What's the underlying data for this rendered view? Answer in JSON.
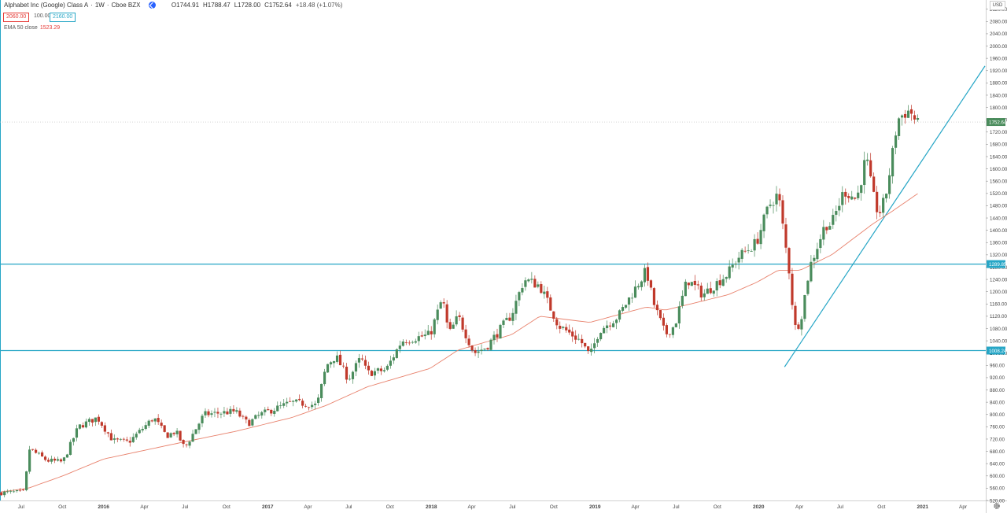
{
  "header": {
    "symbol": "Alphabet Inc (Google) Class A",
    "interval": "1W",
    "exchange": "Cboe BZX",
    "open": "O1744.91",
    "high": "H1788.47",
    "low": "L1728.00",
    "close": "C1752.64",
    "change": "+18.48 (+1.07%)"
  },
  "scale_boxes": {
    "low": "2060.00",
    "mid": "100.00",
    "high": "2160.00"
  },
  "indicator": {
    "label": "EMA 50 close",
    "value": "1523.29"
  },
  "currency": "USD",
  "price_badges": {
    "last": "1752.64",
    "upper_level": "1289.85",
    "lower_level": "1008.24"
  },
  "colors": {
    "up": "#4a8c5c",
    "down": "#c0392b",
    "ema": "#e8826d",
    "level": "#26a6c6",
    "axis_text": "#444444"
  },
  "chart_data": {
    "type": "candlestick",
    "title": "Alphabet Inc (Google) Class A · 1W · Cboe BZX",
    "ylim": [
      520,
      2150
    ],
    "y_ticks": [
      "520.00",
      "560.00",
      "600.00",
      "640.00",
      "680.00",
      "720.00",
      "760.00",
      "800.00",
      "840.00",
      "880.00",
      "920.00",
      "960.00",
      "1000.00",
      "1040.00",
      "1080.00",
      "1120.00",
      "1160.00",
      "1200.00",
      "1240.00",
      "1280.00",
      "1320.00",
      "1360.00",
      "1400.00",
      "1440.00",
      "1480.00",
      "1520.00",
      "1560.00",
      "1600.00",
      "1640.00",
      "1680.00",
      "1720.00",
      "1760.00",
      "1800.00",
      "1840.00",
      "1880.00",
      "1920.00",
      "1960.00",
      "2000.00",
      "2040.00",
      "2080.00",
      "2120.00"
    ],
    "x_ticks": [
      {
        "label": "Jul",
        "date": "2015-07-01"
      },
      {
        "label": "Oct",
        "date": "2015-10-01"
      },
      {
        "label": "2016",
        "date": "2016-01-01"
      },
      {
        "label": "Apr",
        "date": "2016-04-01"
      },
      {
        "label": "Jul",
        "date": "2016-07-01"
      },
      {
        "label": "Oct",
        "date": "2016-10-01"
      },
      {
        "label": "2017",
        "date": "2017-01-01"
      },
      {
        "label": "Apr",
        "date": "2017-04-01"
      },
      {
        "label": "Jul",
        "date": "2017-07-01"
      },
      {
        "label": "Oct",
        "date": "2017-10-01"
      },
      {
        "label": "2018",
        "date": "2018-01-01"
      },
      {
        "label": "Apr",
        "date": "2018-04-01"
      },
      {
        "label": "Jul",
        "date": "2018-07-01"
      },
      {
        "label": "Oct",
        "date": "2018-10-01"
      },
      {
        "label": "2019",
        "date": "2019-01-01"
      },
      {
        "label": "Apr",
        "date": "2019-04-01"
      },
      {
        "label": "Jul",
        "date": "2019-07-01"
      },
      {
        "label": "Oct",
        "date": "2019-10-01"
      },
      {
        "label": "2020",
        "date": "2020-01-01"
      },
      {
        "label": "Apr",
        "date": "2020-04-01"
      },
      {
        "label": "Jul",
        "date": "2020-07-01"
      },
      {
        "label": "Oct",
        "date": "2020-10-01"
      },
      {
        "label": "2021",
        "date": "2021-01-01"
      },
      {
        "label": "Apr",
        "date": "2021-04-01"
      }
    ],
    "x_range": [
      "2015-05-15",
      "2021-05-20"
    ],
    "candle_start": "2015-05-18",
    "anchors": [
      [
        "2015-05-18",
        545
      ],
      [
        "2015-07-10",
        548
      ],
      [
        "2015-07-17",
        690
      ],
      [
        "2015-08-28",
        650
      ],
      [
        "2015-10-02",
        645
      ],
      [
        "2015-11-06",
        760
      ],
      [
        "2015-12-18",
        790
      ],
      [
        "2016-01-22",
        715
      ],
      [
        "2016-02-26",
        710
      ],
      [
        "2016-04-22",
        790
      ],
      [
        "2016-05-20",
        730
      ],
      [
        "2016-06-10",
        745
      ],
      [
        "2016-06-30",
        690
      ],
      [
        "2016-08-12",
        800
      ],
      [
        "2016-10-21",
        810
      ],
      [
        "2016-11-18",
        770
      ],
      [
        "2016-12-16",
        800
      ],
      [
        "2017-02-24",
        840
      ],
      [
        "2017-04-21",
        830
      ],
      [
        "2017-05-12",
        960
      ],
      [
        "2017-06-02",
        990
      ],
      [
        "2017-06-30",
        915
      ],
      [
        "2017-07-28",
        985
      ],
      [
        "2017-08-11",
        935
      ],
      [
        "2017-09-22",
        945
      ],
      [
        "2017-10-27",
        1040
      ],
      [
        "2017-12-29",
        1060
      ],
      [
        "2018-01-26",
        1180
      ],
      [
        "2018-02-09",
        1060
      ],
      [
        "2018-03-02",
        1120
      ],
      [
        "2018-04-06",
        1000
      ],
      [
        "2018-05-04",
        1020
      ],
      [
        "2018-06-29",
        1125
      ],
      [
        "2018-07-27",
        1240
      ],
      [
        "2018-08-31",
        1220
      ],
      [
        "2018-10-12",
        1090
      ],
      [
        "2018-11-30",
        1040
      ],
      [
        "2018-12-21",
        990
      ],
      [
        "2019-01-11",
        1075
      ],
      [
        "2019-02-22",
        1120
      ],
      [
        "2019-04-26",
        1270
      ],
      [
        "2019-05-10",
        1170
      ],
      [
        "2019-06-07",
        1060
      ],
      [
        "2019-06-28",
        1090
      ],
      [
        "2019-07-26",
        1240
      ],
      [
        "2019-08-30",
        1190
      ],
      [
        "2019-10-25",
        1260
      ],
      [
        "2019-11-15",
        1310
      ],
      [
        "2019-12-27",
        1360
      ],
      [
        "2020-01-24",
        1480
      ],
      [
        "2020-02-14",
        1520
      ],
      [
        "2020-02-28",
        1370
      ],
      [
        "2020-03-13",
        1230
      ],
      [
        "2020-03-20",
        1080
      ],
      [
        "2020-04-03",
        1100
      ],
      [
        "2020-04-24",
        1280
      ],
      [
        "2020-05-29",
        1420
      ],
      [
        "2020-06-12",
        1420
      ],
      [
        "2020-07-10",
        1530
      ],
      [
        "2020-08-07",
        1500
      ],
      [
        "2020-08-28",
        1640
      ],
      [
        "2020-09-11",
        1520
      ],
      [
        "2020-09-25",
        1450
      ],
      [
        "2020-10-09",
        1500
      ],
      [
        "2020-10-23",
        1620
      ],
      [
        "2020-11-06",
        1760
      ],
      [
        "2020-11-27",
        1790
      ],
      [
        "2020-12-11",
        1780
      ],
      [
        "2020-12-18",
        1735
      ],
      [
        "2020-12-25",
        1752.64
      ]
    ],
    "ema_anchors": [
      [
        "2015-05-18",
        548
      ],
      [
        "2015-07-17",
        560
      ],
      [
        "2015-10-02",
        600
      ],
      [
        "2016-01-01",
        655
      ],
      [
        "2016-06-10",
        705
      ],
      [
        "2016-10-21",
        745
      ],
      [
        "2017-02-24",
        790
      ],
      [
        "2017-05-12",
        830
      ],
      [
        "2017-08-11",
        890
      ],
      [
        "2017-12-29",
        950
      ],
      [
        "2018-03-02",
        1010
      ],
      [
        "2018-06-29",
        1060
      ],
      [
        "2018-08-31",
        1120
      ],
      [
        "2018-12-21",
        1100
      ],
      [
        "2019-04-26",
        1150
      ],
      [
        "2019-06-07",
        1140
      ],
      [
        "2019-10-25",
        1190
      ],
      [
        "2019-12-27",
        1230
      ],
      [
        "2020-02-14",
        1270
      ],
      [
        "2020-04-03",
        1270
      ],
      [
        "2020-06-12",
        1320
      ],
      [
        "2020-09-11",
        1420
      ],
      [
        "2020-10-23",
        1460
      ],
      [
        "2020-12-25",
        1523.29
      ]
    ],
    "levels": [
      {
        "name": "resistance-level",
        "value": 1289.85
      },
      {
        "name": "support-level",
        "value": 1008.24
      }
    ],
    "trendline": [
      [
        "2020-02-28",
        955
      ],
      [
        "2021-05-20",
        1935
      ]
    ],
    "last_price": 1752.64
  }
}
